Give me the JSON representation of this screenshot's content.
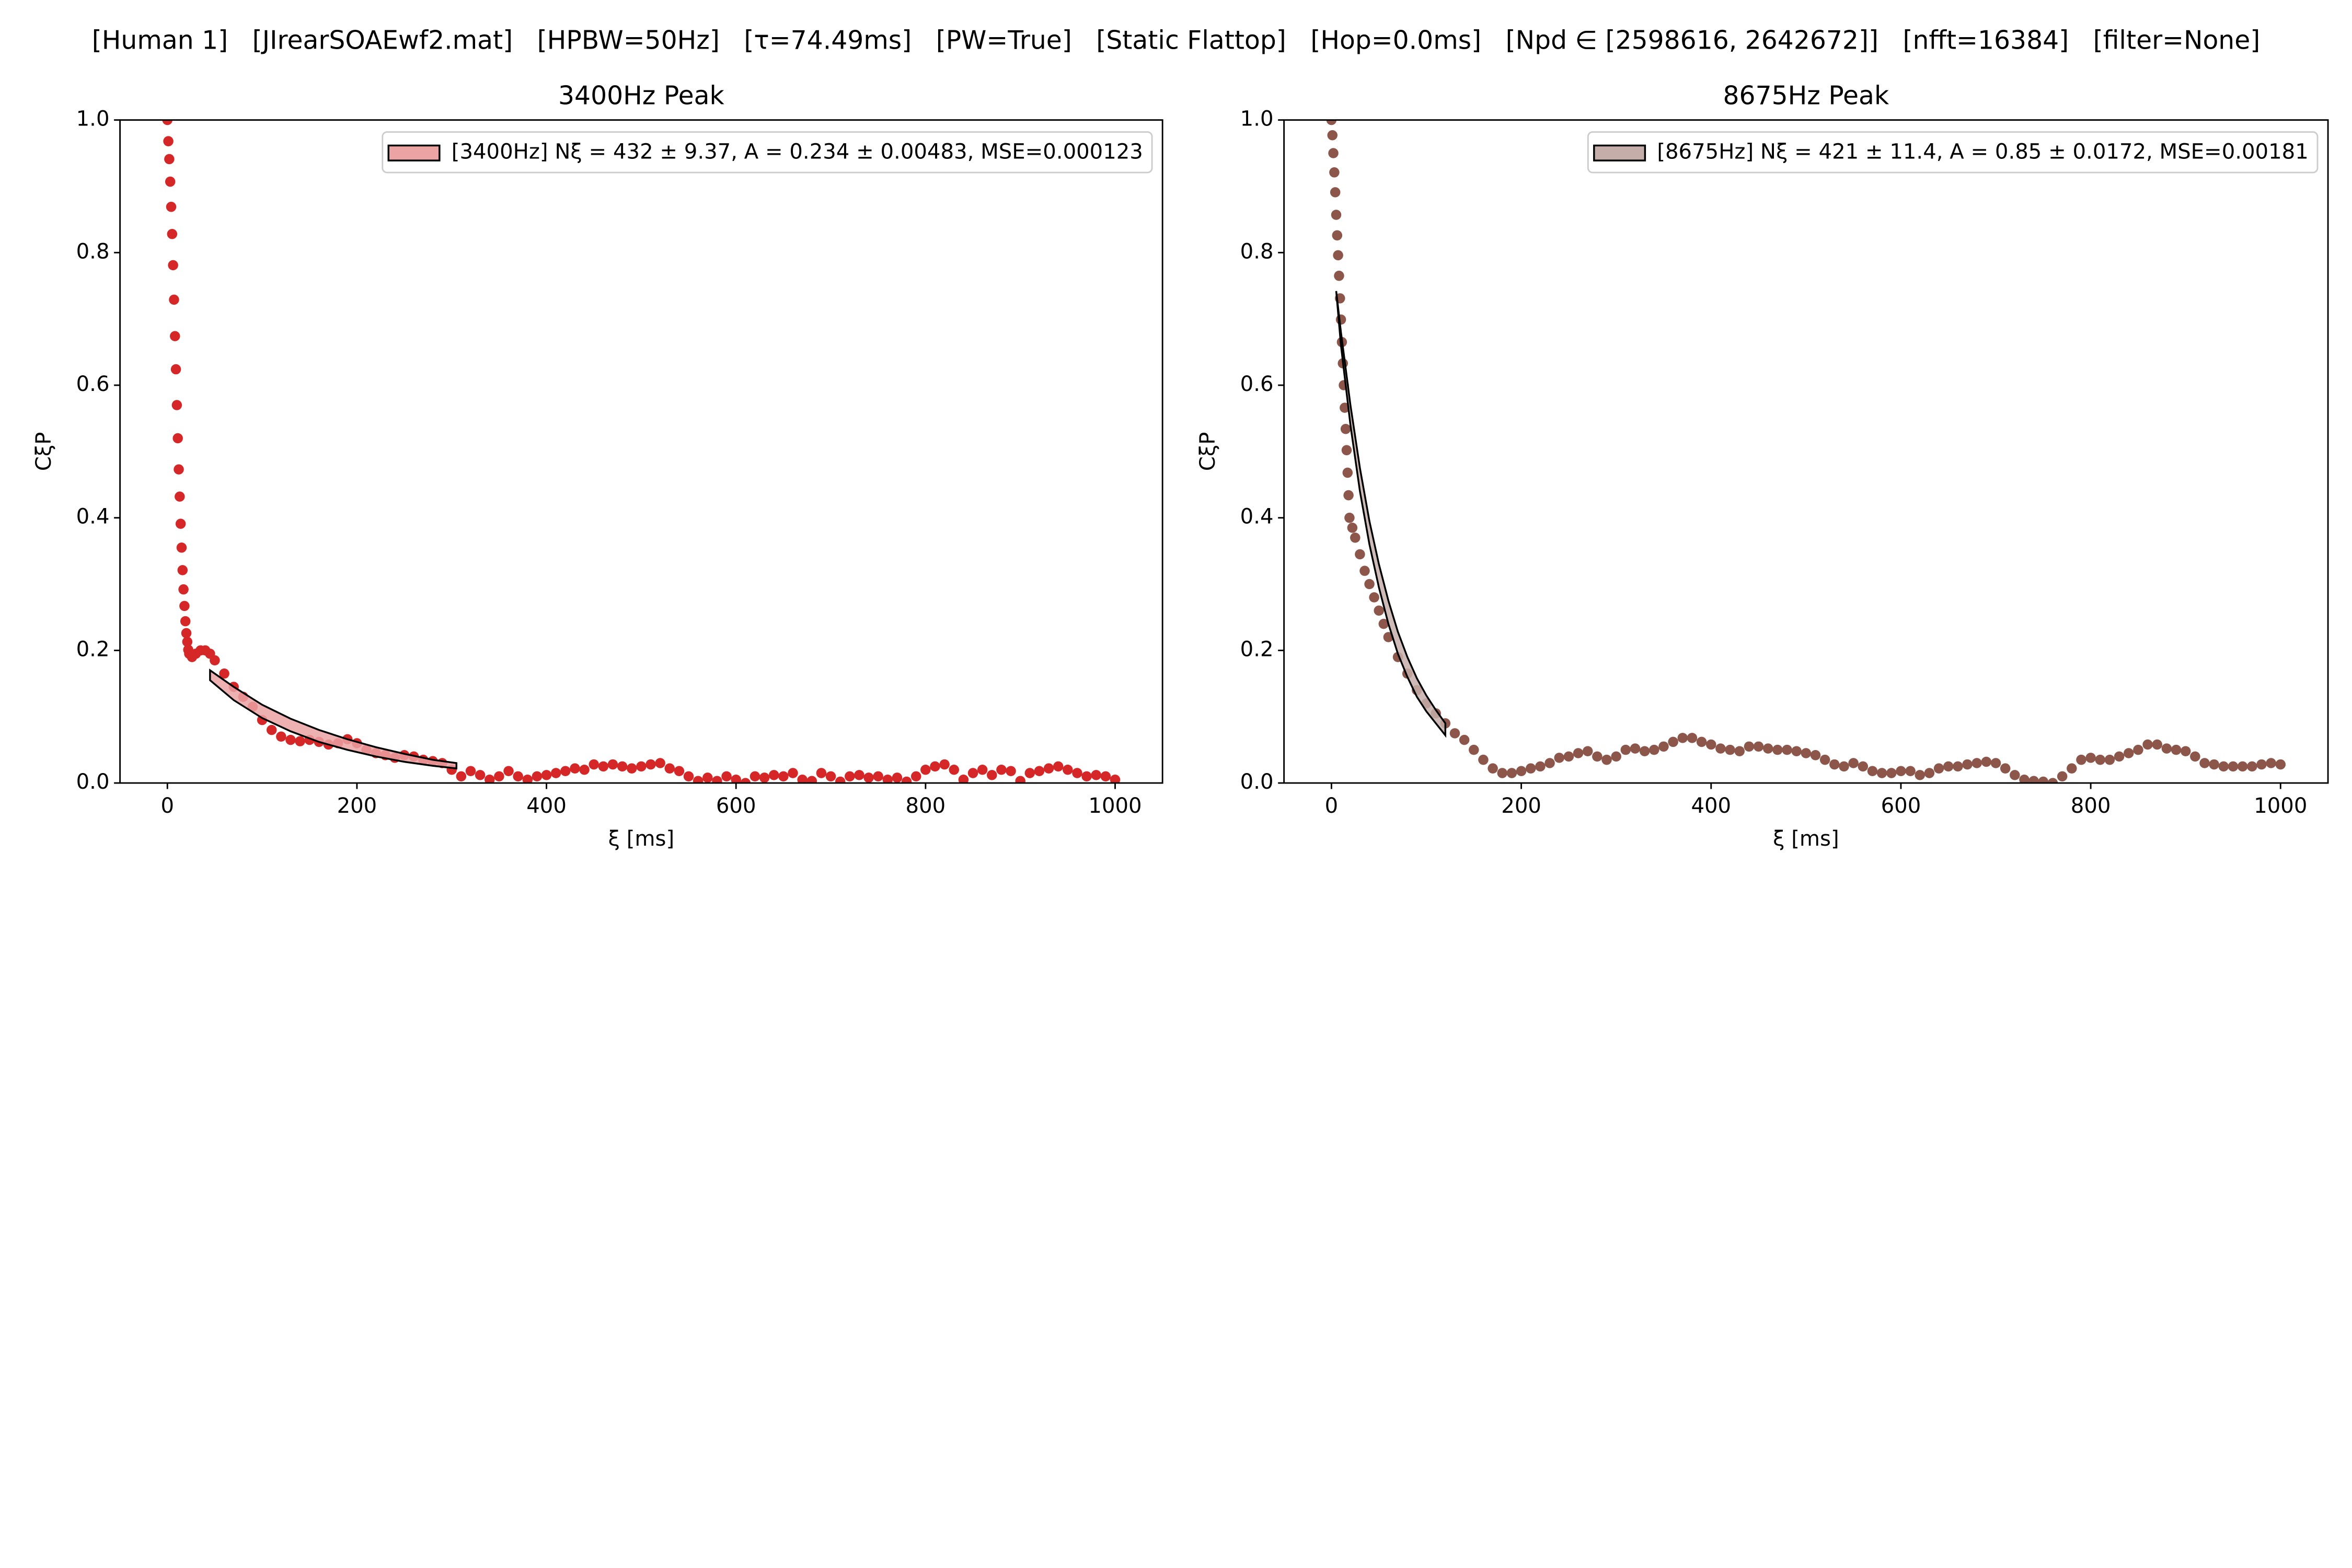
{
  "title": "[Human 1]   [JIrearSOAEwf2.mat]   [HPBW=50Hz]   [τ=74.49ms]   [PW=True]   [Static Flattop]   [Hop=0.0ms]   [Npd ∈ [2598616, 2642672]]   [nfft=16384]   [filter=None]",
  "chart_data": [
    {
      "type": "scatter",
      "title": "3400Hz Peak",
      "x_label": "ξ [ms]",
      "y_label": "CξP",
      "xlim": [
        -50,
        1050
      ],
      "ylim": [
        0,
        1
      ],
      "xticks": [
        0,
        200,
        400,
        600,
        800,
        1000
      ],
      "yticks": [
        {
          "value": 0,
          "label": "0.0"
        },
        0.2,
        0.4,
        0.6,
        0.8,
        {
          "value": 1,
          "label": "1.0"
        }
      ],
      "legend": "upper right",
      "series": [
        {
          "color": "#d62728",
          "x": [
            0,
            1,
            2,
            3,
            4,
            5,
            6,
            7,
            8,
            9,
            10,
            11,
            12,
            13,
            14,
            15,
            16,
            17,
            18,
            19,
            20,
            21,
            22,
            23,
            26,
            30,
            35,
            40,
            45,
            50,
            60,
            70,
            80,
            90,
            100,
            110,
            120,
            130,
            140,
            150,
            160,
            170,
            180,
            190,
            200,
            210,
            220,
            230,
            240,
            250,
            260,
            270,
            280,
            290,
            300,
            310,
            320,
            330,
            340,
            350,
            360,
            370,
            380,
            390,
            400,
            410,
            420,
            430,
            440,
            450,
            460,
            470,
            480,
            490,
            500,
            510,
            520,
            530,
            540,
            550,
            560,
            570,
            580,
            590,
            600,
            610,
            620,
            630,
            640,
            650,
            660,
            670,
            680,
            690,
            700,
            710,
            720,
            730,
            740,
            750,
            760,
            770,
            780,
            790,
            800,
            810,
            820,
            830,
            840,
            850,
            860,
            870,
            880,
            890,
            900,
            910,
            920,
            930,
            940,
            950,
            960,
            970,
            980,
            990,
            1000
          ],
          "values": [
            1.0,
            0.968,
            0.941,
            0.907,
            0.869,
            0.828,
            0.781,
            0.729,
            0.674,
            0.624,
            0.57,
            0.52,
            0.473,
            0.432,
            0.391,
            0.355,
            0.321,
            0.292,
            0.267,
            0.244,
            0.226,
            0.213,
            0.201,
            0.195,
            0.19,
            0.195,
            0.2,
            0.2,
            0.195,
            0.185,
            0.165,
            0.145,
            0.13,
            0.115,
            0.095,
            0.08,
            0.07,
            0.065,
            0.063,
            0.065,
            0.062,
            0.058,
            0.06,
            0.066,
            0.06,
            0.05,
            0.045,
            0.042,
            0.038,
            0.042,
            0.04,
            0.035,
            0.033,
            0.03,
            0.02,
            0.01,
            0.018,
            0.012,
            0.005,
            0.01,
            0.018,
            0.01,
            0.005,
            0.01,
            0.012,
            0.015,
            0.018,
            0.022,
            0.02,
            0.028,
            0.025,
            0.028,
            0.025,
            0.022,
            0.025,
            0.028,
            0.03,
            0.022,
            0.018,
            0.01,
            0.003,
            0.008,
            0.003,
            0.01,
            0.005,
            0.0,
            0.01,
            0.008,
            0.012,
            0.01,
            0.015,
            0.005,
            0.003,
            0.015,
            0.01,
            0.002,
            0.01,
            0.012,
            0.008,
            0.01,
            0.005,
            0.008,
            0.002,
            0.01,
            0.02,
            0.025,
            0.028,
            0.02,
            0.005,
            0.015,
            0.02,
            0.012,
            0.02,
            0.018,
            0.003,
            0.015,
            0.018,
            0.022,
            0.025,
            0.02,
            0.015,
            0.01,
            0.012,
            0.01,
            0.005
          ]
        }
      ],
      "fit": {
        "name": "[3400Hz] Nξ = 432 ± 9.37, A = 0.234 ± 0.00483, MSE=0.000123",
        "color": "#eba3a3",
        "edgecolor": "#000000",
        "x": [
          45,
          70,
          100,
          130,
          160,
          190,
          220,
          250,
          280,
          305
        ],
        "lower": [
          0.155,
          0.125,
          0.098,
          0.078,
          0.062,
          0.05,
          0.04,
          0.032,
          0.026,
          0.022
        ],
        "upper": [
          0.17,
          0.145,
          0.118,
          0.097,
          0.08,
          0.066,
          0.054,
          0.044,
          0.035,
          0.03
        ]
      }
    },
    {
      "type": "scatter",
      "title": "8675Hz Peak",
      "x_label": "ξ [ms]",
      "y_label": "CξP",
      "xlim": [
        -50,
        1050
      ],
      "ylim": [
        0,
        1
      ],
      "xticks": [
        0,
        200,
        400,
        600,
        800,
        1000
      ],
      "yticks": [
        {
          "value": 0,
          "label": "0.0"
        },
        0.2,
        0.4,
        0.6,
        0.8,
        {
          "value": 1,
          "label": "1.0"
        }
      ],
      "legend": "upper right",
      "series": [
        {
          "color": "#8c564b",
          "x": [
            0,
            1,
            2,
            3,
            4,
            5,
            6,
            7,
            8,
            9,
            10,
            11,
            12,
            13,
            14,
            15,
            16,
            17,
            18,
            19,
            22,
            25,
            30,
            35,
            40,
            45,
            50,
            55,
            60,
            70,
            80,
            90,
            100,
            110,
            120,
            130,
            140,
            150,
            160,
            170,
            180,
            190,
            200,
            210,
            220,
            230,
            240,
            250,
            260,
            270,
            280,
            290,
            300,
            310,
            320,
            330,
            340,
            350,
            360,
            370,
            380,
            390,
            400,
            410,
            420,
            430,
            440,
            450,
            460,
            470,
            480,
            490,
            500,
            510,
            520,
            530,
            540,
            550,
            560,
            570,
            580,
            590,
            600,
            610,
            620,
            630,
            640,
            650,
            660,
            670,
            680,
            690,
            700,
            710,
            720,
            730,
            740,
            750,
            760,
            770,
            780,
            790,
            800,
            810,
            820,
            830,
            840,
            850,
            860,
            870,
            880,
            890,
            900,
            910,
            920,
            930,
            940,
            950,
            960,
            970,
            980,
            990,
            1000
          ],
          "values": [
            1.0,
            0.977,
            0.95,
            0.921,
            0.891,
            0.857,
            0.826,
            0.796,
            0.765,
            0.731,
            0.699,
            0.665,
            0.633,
            0.6,
            0.566,
            0.534,
            0.502,
            0.468,
            0.434,
            0.4,
            0.385,
            0.37,
            0.345,
            0.32,
            0.3,
            0.28,
            0.26,
            0.24,
            0.22,
            0.19,
            0.165,
            0.14,
            0.12,
            0.105,
            0.09,
            0.075,
            0.065,
            0.05,
            0.035,
            0.022,
            0.015,
            0.015,
            0.018,
            0.022,
            0.025,
            0.03,
            0.038,
            0.04,
            0.045,
            0.048,
            0.04,
            0.035,
            0.04,
            0.05,
            0.052,
            0.048,
            0.05,
            0.055,
            0.062,
            0.068,
            0.068,
            0.062,
            0.058,
            0.052,
            0.05,
            0.048,
            0.055,
            0.055,
            0.052,
            0.05,
            0.05,
            0.048,
            0.045,
            0.042,
            0.035,
            0.028,
            0.025,
            0.03,
            0.025,
            0.018,
            0.015,
            0.015,
            0.018,
            0.018,
            0.012,
            0.015,
            0.022,
            0.025,
            0.025,
            0.028,
            0.03,
            0.032,
            0.03,
            0.022,
            0.012,
            0.005,
            0.003,
            0.002,
            0.0,
            0.01,
            0.022,
            0.035,
            0.038,
            0.035,
            0.035,
            0.04,
            0.045,
            0.05,
            0.058,
            0.058,
            0.052,
            0.05,
            0.048,
            0.04,
            0.03,
            0.028,
            0.025,
            0.025,
            0.025,
            0.025,
            0.028,
            0.03,
            0.028
          ]
        }
      ],
      "fit": {
        "name": "[8675Hz] Nξ = 421 ± 11.4, A = 0.85 ± 0.0172, MSE=0.00181",
        "color": "#c5aea9",
        "edgecolor": "#000000",
        "x": [
          5,
          10,
          20,
          30,
          40,
          50,
          60,
          70,
          80,
          90,
          100,
          110,
          120
        ],
        "lower": [
          0.742,
          0.66,
          0.54,
          0.44,
          0.36,
          0.295,
          0.24,
          0.195,
          0.16,
          0.13,
          0.108,
          0.09,
          0.072
        ],
        "upper": [
          0.742,
          0.68,
          0.57,
          0.475,
          0.395,
          0.33,
          0.275,
          0.228,
          0.19,
          0.158,
          0.132,
          0.11,
          0.09
        ]
      }
    }
  ]
}
